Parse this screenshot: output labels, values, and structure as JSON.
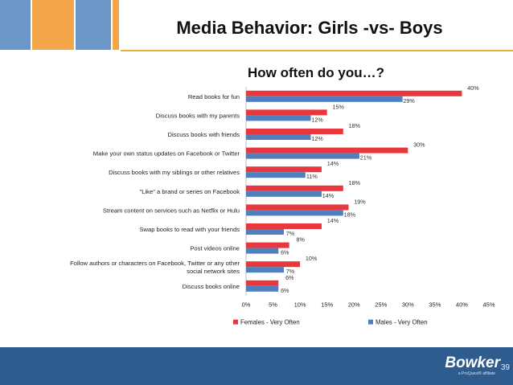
{
  "slide": {
    "title": "Media Behavior: Girls -vs- Boys",
    "page_number": "39",
    "logo_text": "Bowker",
    "logo_subtext": "a ProQuest® affiliate"
  },
  "colors": {
    "females": "#e8383d",
    "males": "#4f7fbd",
    "footer": "#2f5c8f",
    "squares": [
      "#6a96c8",
      "#f3a54a",
      "#6a96c8",
      "#f3a54a",
      "#6a96c8"
    ],
    "accent_line": "#e8b23a"
  },
  "chart_data": {
    "type": "bar",
    "orientation": "horizontal",
    "title": "How often do you…?",
    "categories": [
      "Read books for fun",
      "Discuss books with my parents",
      "Discuss books with friends",
      "Make your own status updates on Facebook or Twitter",
      "Discuss books with my siblings or other relatives",
      "\"Like\" a brand or series on Facebook",
      "Stream content on services such as Netflix or Hulu",
      "Swap books to read with your friends",
      "Post videos online",
      "Follow authors or characters on Facebook, Twitter or any other social network sites",
      "Discuss books online"
    ],
    "series": [
      {
        "name": "Females - Very Often",
        "values": [
          40,
          15,
          18,
          30,
          14,
          18,
          19,
          14,
          8,
          10,
          6
        ]
      },
      {
        "name": "Males - Very Often",
        "values": [
          29,
          12,
          12,
          21,
          11,
          14,
          18,
          7,
          6,
          7,
          6
        ]
      }
    ],
    "xlim": [
      0,
      45
    ],
    "xticks": [
      "0%",
      "5%",
      "10%",
      "15%",
      "20%",
      "25%",
      "30%",
      "35%",
      "40%",
      "45%"
    ],
    "value_suffix": "%",
    "legend_position": "bottom",
    "grid": false
  }
}
